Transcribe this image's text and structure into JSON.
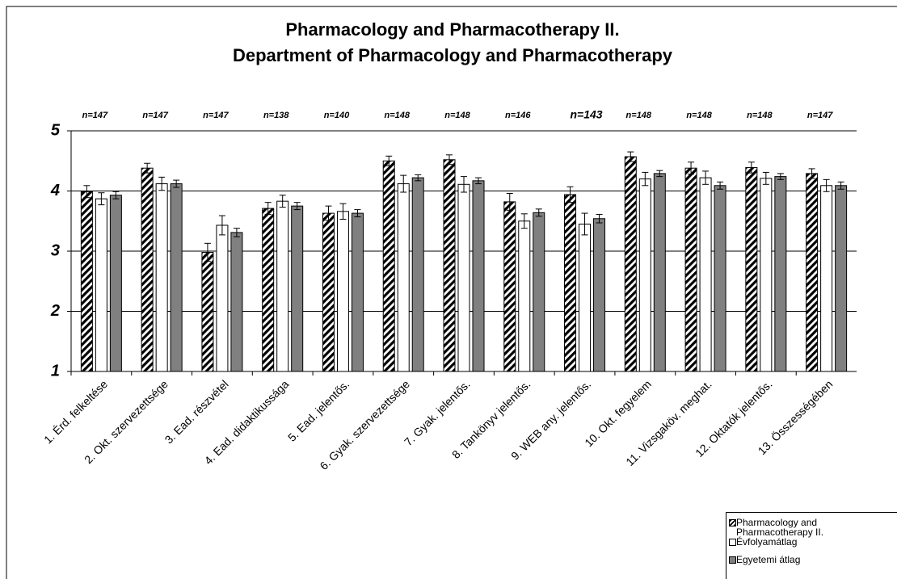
{
  "chart_data": {
    "type": "bar",
    "title": [
      "Pharmacology and Pharmacotherapy II.",
      "Department of Pharmacology and Pharmacotherapy"
    ],
    "categories": [
      "1. Érd. felkeltése",
      "2. Okt. szervezettsége",
      "3. Ead. részvétel",
      "4. Ead. didaktikussága",
      "5. Ead. jelentős.",
      "6. Gyak. szervezettsége",
      "7. Gyak. jelentős.",
      "8. Tankönyv jelentős.",
      "9. WEB any. jelentős.",
      "10. Okt. fegyelem",
      "11. Vizsgaköv. meghat.",
      "12. Oktatók jelentős.",
      "13. Összességében"
    ],
    "annotations": [
      "n=147",
      "n=147",
      "n=147",
      "n=138",
      "n=140",
      "n=148",
      "n=148",
      "n=146",
      "n=143",
      "n=148",
      "n=148",
      "n=148",
      "n=147"
    ],
    "series": [
      {
        "name": "Pharmacology and Pharmacotherapy II.",
        "color": "hatched",
        "values": [
          3.99,
          4.38,
          2.98,
          3.71,
          3.63,
          4.5,
          4.52,
          3.82,
          3.94,
          4.57,
          4.38,
          4.39,
          4.29
        ],
        "errors": [
          0.1,
          0.08,
          0.15,
          0.1,
          0.12,
          0.08,
          0.08,
          0.14,
          0.13,
          0.08,
          0.1,
          0.09,
          0.08
        ]
      },
      {
        "name": "Évfolyamátlag",
        "color": "#ffffff",
        "values": [
          3.87,
          4.12,
          3.43,
          3.83,
          3.66,
          4.12,
          4.11,
          3.5,
          3.45,
          4.2,
          4.22,
          4.21,
          4.09
        ],
        "errors": [
          0.1,
          0.11,
          0.16,
          0.1,
          0.13,
          0.14,
          0.13,
          0.12,
          0.18,
          0.11,
          0.11,
          0.1,
          0.1
        ]
      },
      {
        "name": "Egyetemi átlag",
        "color": "#808080",
        "values": [
          3.93,
          4.12,
          3.31,
          3.75,
          3.63,
          4.22,
          4.17,
          3.64,
          3.54,
          4.29,
          4.09,
          4.24,
          4.09
        ],
        "errors": [
          0.06,
          0.06,
          0.07,
          0.06,
          0.06,
          0.05,
          0.05,
          0.06,
          0.07,
          0.05,
          0.06,
          0.05,
          0.06
        ]
      }
    ],
    "ylim": [
      1,
      5
    ],
    "yticks": [
      1,
      2,
      3,
      4,
      5
    ],
    "grid": true
  }
}
